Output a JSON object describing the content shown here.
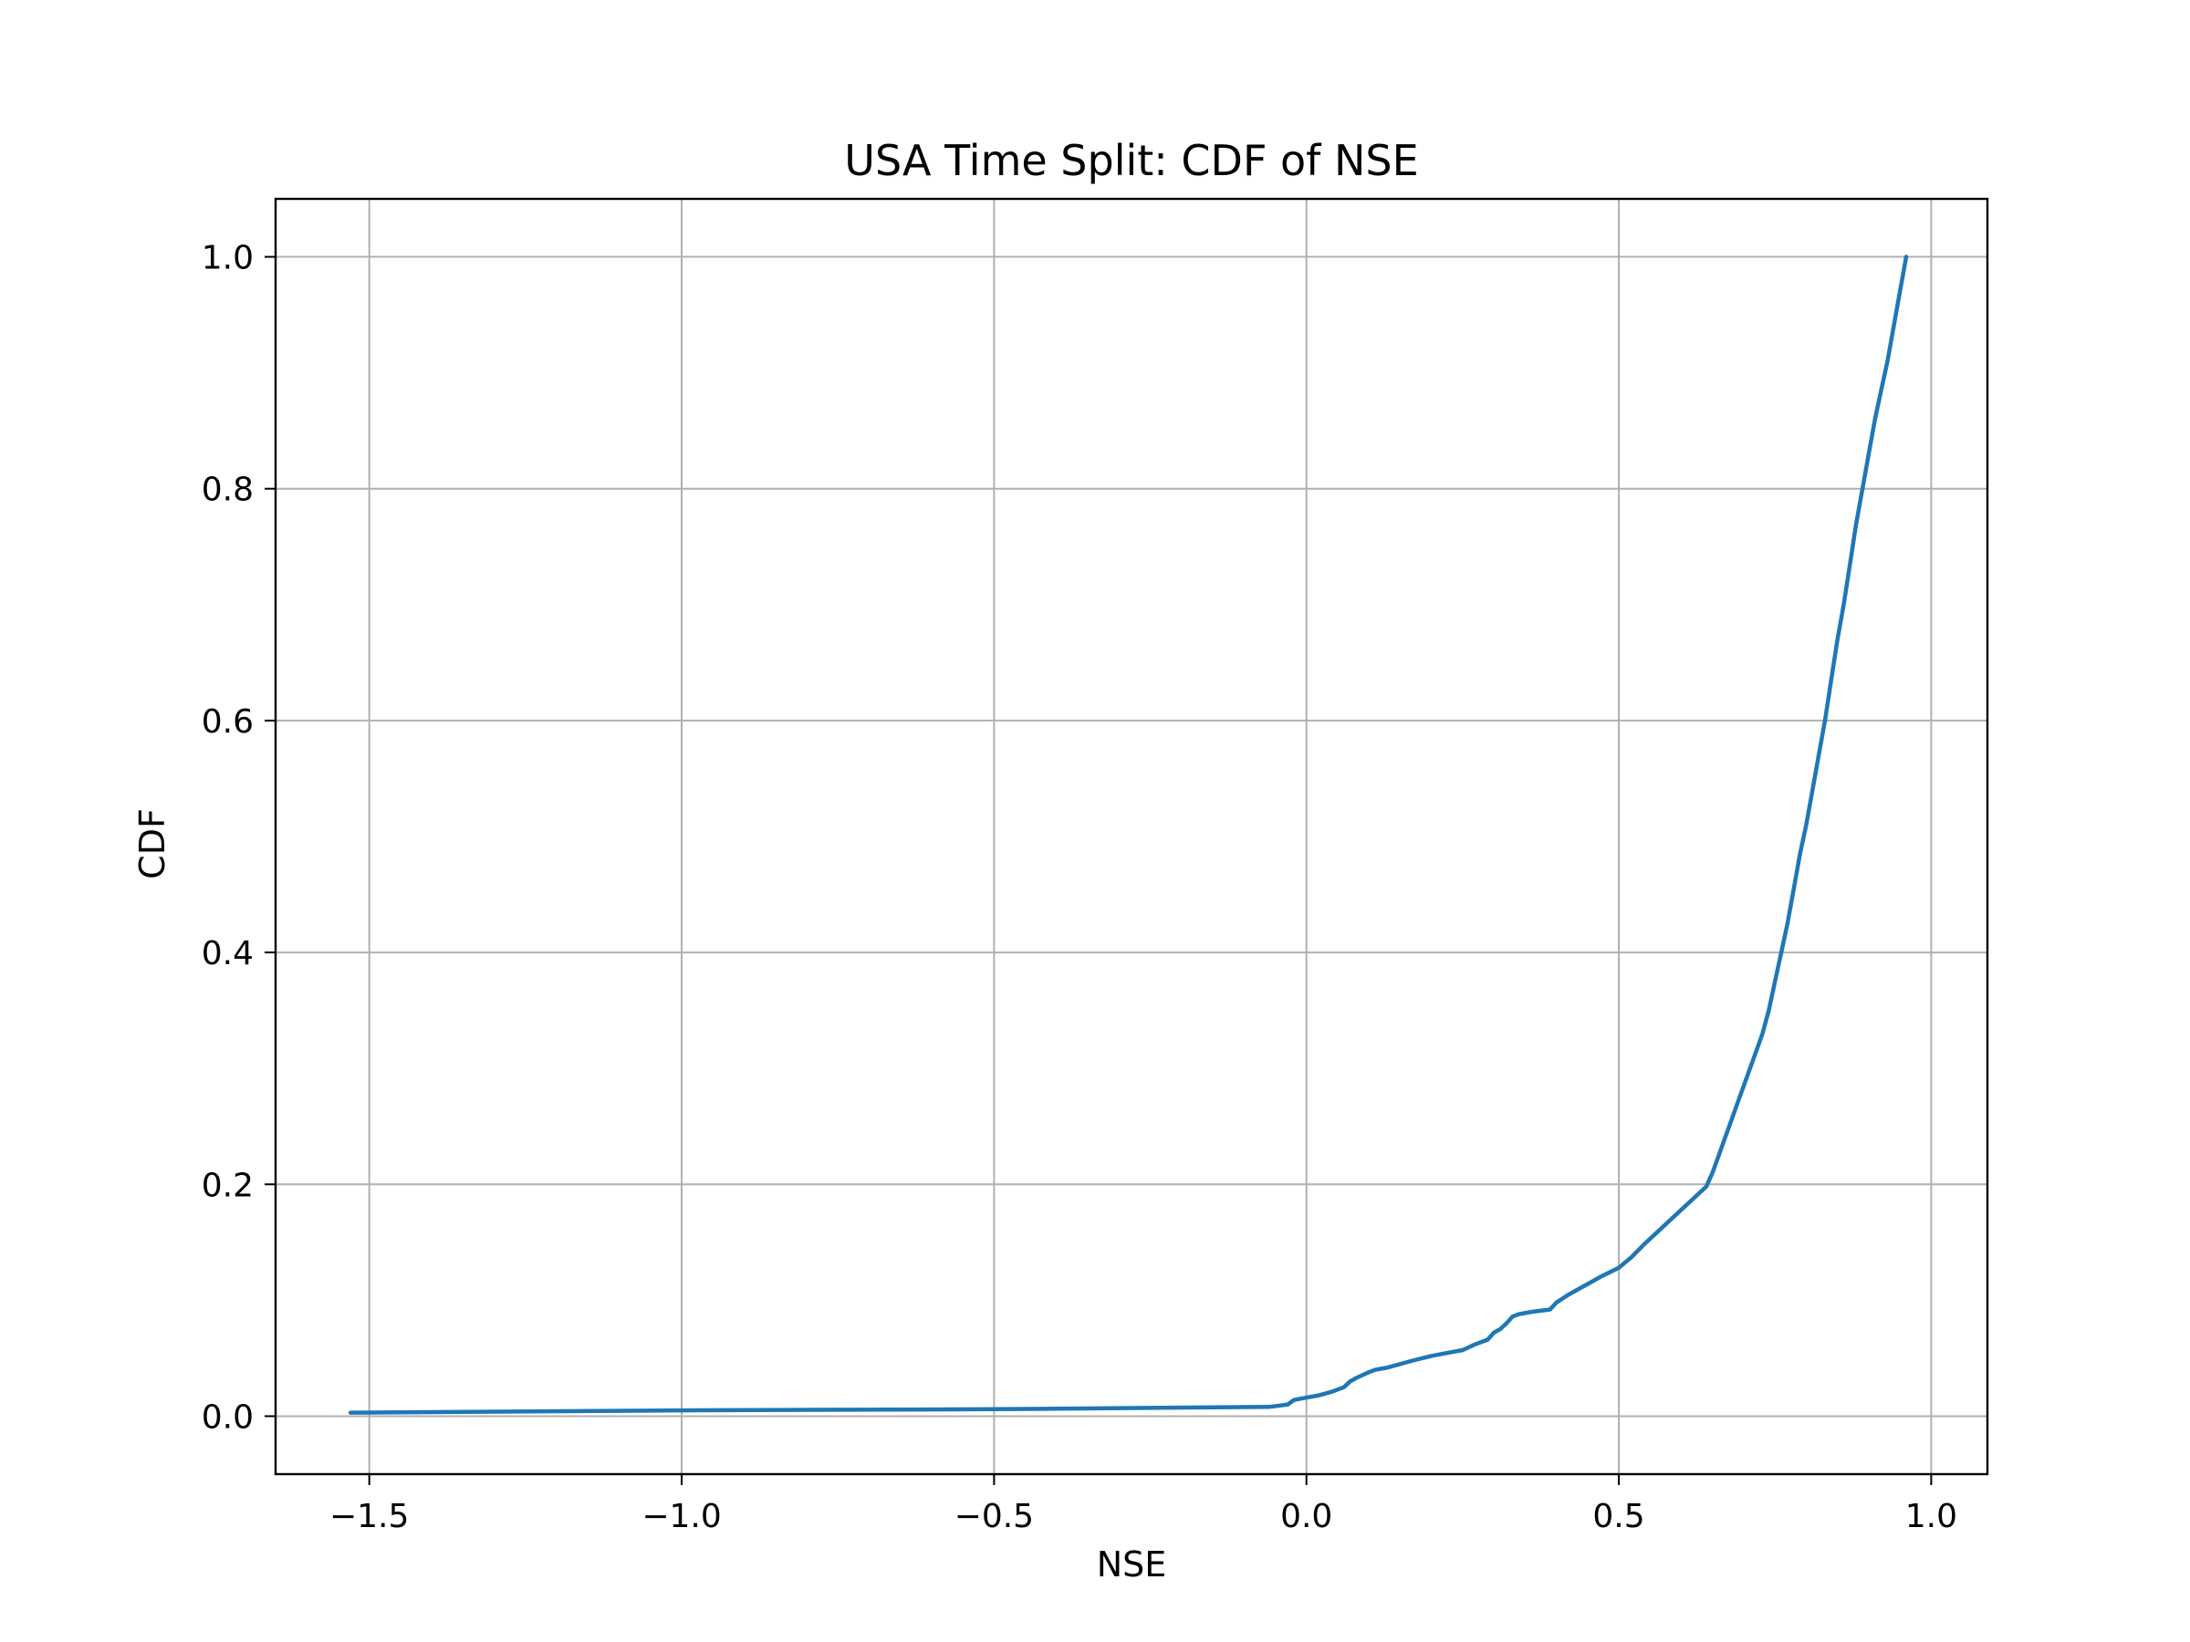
{
  "chart_data": {
    "type": "line",
    "title": "USA Time Split: CDF of NSE",
    "xlabel": "NSE",
    "ylabel": "CDF",
    "xlim": [
      -1.65,
      1.09
    ],
    "ylim": [
      -0.05,
      1.05
    ],
    "xticks": [
      -1.5,
      -1.0,
      -0.5,
      0.0,
      0.5,
      1.0
    ],
    "xtick_labels": [
      "−1.5",
      "−1.0",
      "−0.5",
      "0.0",
      "0.5",
      "1.0"
    ],
    "yticks": [
      0.0,
      0.2,
      0.4,
      0.6,
      0.8,
      1.0
    ],
    "ytick_labels": [
      "0.0",
      "0.2",
      "0.4",
      "0.6",
      "0.8",
      "1.0"
    ],
    "grid": true,
    "line_color": "#1f77b4",
    "grid_color": "#b0b0b0",
    "series": [
      {
        "x": [
          -1.53,
          -1.0,
          -0.5,
          -0.06,
          -0.03,
          -0.02,
          0.0,
          0.02,
          0.04,
          0.06,
          0.07,
          0.08,
          0.1,
          0.11,
          0.13,
          0.15,
          0.17,
          0.2,
          0.22,
          0.25,
          0.27,
          0.29,
          0.3,
          0.31,
          0.32,
          0.33,
          0.34,
          0.36,
          0.39,
          0.4,
          0.42,
          0.45,
          0.47,
          0.5,
          0.52,
          0.54,
          0.56,
          0.58,
          0.6,
          0.62,
          0.64,
          0.65,
          0.66,
          0.67,
          0.68,
          0.69,
          0.7,
          0.71,
          0.72,
          0.73,
          0.74,
          0.75,
          0.76,
          0.77,
          0.78,
          0.79,
          0.8,
          0.81,
          0.82,
          0.83,
          0.84,
          0.85,
          0.86,
          0.87,
          0.88,
          0.89,
          0.9,
          0.91,
          0.92,
          0.93,
          0.94,
          0.95,
          0.96
        ],
        "y": [
          0.003,
          0.005,
          0.006,
          0.008,
          0.01,
          0.014,
          0.016,
          0.018,
          0.021,
          0.025,
          0.03,
          0.033,
          0.038,
          0.04,
          0.042,
          0.045,
          0.048,
          0.052,
          0.054,
          0.057,
          0.062,
          0.066,
          0.072,
          0.075,
          0.08,
          0.086,
          0.088,
          0.09,
          0.092,
          0.098,
          0.105,
          0.114,
          0.12,
          0.128,
          0.137,
          0.148,
          0.158,
          0.168,
          0.178,
          0.188,
          0.198,
          0.21,
          0.225,
          0.24,
          0.255,
          0.27,
          0.285,
          0.3,
          0.315,
          0.33,
          0.35,
          0.375,
          0.4,
          0.425,
          0.455,
          0.485,
          0.51,
          0.54,
          0.57,
          0.6,
          0.635,
          0.67,
          0.7,
          0.735,
          0.77,
          0.8,
          0.83,
          0.86,
          0.885,
          0.91,
          0.94,
          0.97,
          1.0
        ]
      }
    ]
  }
}
